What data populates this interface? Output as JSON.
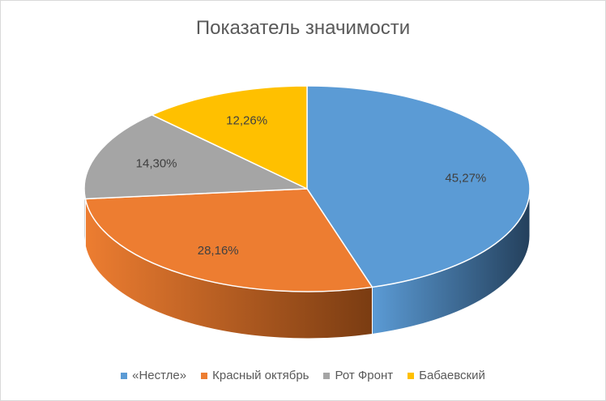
{
  "chart_data": {
    "type": "pie",
    "title": "Показатель значимости",
    "categories": [
      "«Нестле»",
      "Красный октябрь",
      "Рот Фронт",
      "Бабаевский"
    ],
    "values": [
      45.27,
      28.16,
      14.3,
      12.26
    ],
    "data_labels": [
      "45,27%",
      "28,16%",
      "14,30%",
      "12,26%"
    ],
    "colors": [
      "#5b9bd5",
      "#ed7d31",
      "#a5a5a5",
      "#ffc000"
    ],
    "side_colors": [
      "#24405c",
      "#7a3c12",
      "#5a5a5a",
      "#8a6a00"
    ],
    "legend_position": "bottom",
    "style": "3d"
  }
}
